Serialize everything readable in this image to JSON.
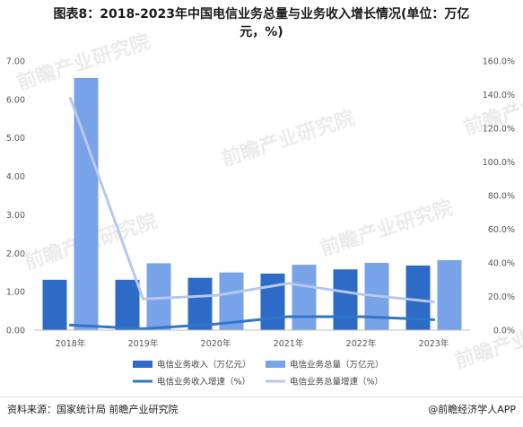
{
  "title": {
    "line1": "图表8：2018-2023年中国电信业务总量与业务收入增长情况(单位：万亿",
    "line2": "元，%)"
  },
  "footer": {
    "source": "资料来源：国家统计局 前瞻产业研究院",
    "brand": "@前瞻经济学人APP"
  },
  "watermark": "前瞻产业研究院",
  "chart_data": {
    "type": "bar",
    "categories": [
      "2018年",
      "2019年",
      "2020年",
      "2021年",
      "2022年",
      "2023年"
    ],
    "left_axis": {
      "ylim": [
        0,
        7
      ],
      "ticks": [
        "0.00",
        "1.00",
        "2.00",
        "3.00",
        "4.00",
        "5.00",
        "6.00",
        "7.00"
      ]
    },
    "right_axis": {
      "ylim": [
        0,
        160
      ],
      "ticks": [
        "0.0%",
        "20.0%",
        "40.0%",
        "60.0%",
        "80.0%",
        "100.0%",
        "120.0%",
        "140.0%",
        "160.0%"
      ]
    },
    "bar_series": [
      {
        "name": "电信业务收入（万亿元）",
        "color": "#2e6bc6",
        "values": [
          1.31,
          1.31,
          1.36,
          1.47,
          1.58,
          1.68
        ]
      },
      {
        "name": "电信业务总量（万亿元）",
        "color": "#79a3e8",
        "values": [
          6.56,
          1.74,
          1.5,
          1.7,
          1.75,
          1.82
        ]
      }
    ],
    "line_series": [
      {
        "name": "电信业务收入增速（%）",
        "color": "#2f77c8",
        "values": [
          3.0,
          0.8,
          3.6,
          8.0,
          8.0,
          6.2
        ]
      },
      {
        "name": "电信业务总量增速（%）",
        "color": "#b6c8f0",
        "values": [
          137.9,
          18.5,
          20.6,
          27.8,
          21.3,
          16.8
        ]
      }
    ],
    "legend_position": "bottom",
    "grid": false
  }
}
